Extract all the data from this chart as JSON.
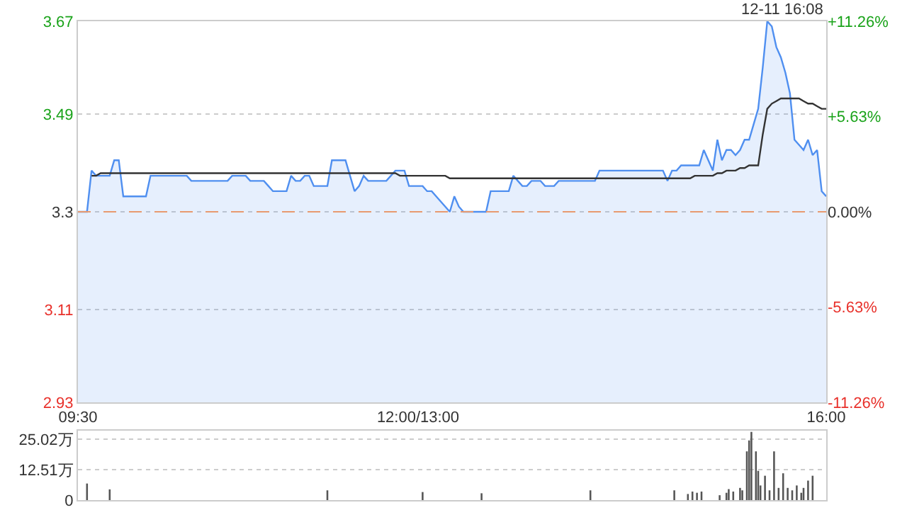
{
  "chart_data": [
    {
      "type": "line",
      "annotations": [
        "12-11 16:08"
      ],
      "categories": [
        "09:30",
        null,
        null,
        null,
        null,
        null,
        null,
        null,
        null,
        null,
        null,
        null,
        null,
        null,
        null,
        null,
        null,
        null,
        null,
        null,
        null,
        null,
        null,
        null,
        null,
        null,
        null,
        null,
        null,
        null,
        null,
        null,
        null,
        null,
        null,
        null,
        null,
        null,
        null,
        null,
        null,
        null,
        null,
        null,
        null,
        null,
        null,
        null,
        null,
        null,
        null,
        null,
        null,
        null,
        null,
        null,
        null,
        null,
        null,
        null,
        null,
        null,
        null,
        null,
        null,
        null,
        null,
        null,
        null,
        null,
        null,
        null,
        null,
        null,
        null,
        "12:00/13:00",
        null,
        null,
        null,
        null,
        null,
        null,
        null,
        null,
        null,
        null,
        null,
        null,
        null,
        null,
        null,
        null,
        null,
        null,
        null,
        null,
        null,
        null,
        null,
        null,
        null,
        null,
        null,
        null,
        null,
        null,
        null,
        null,
        null,
        null,
        null,
        null,
        null,
        null,
        null,
        null,
        null,
        null,
        null,
        null,
        null,
        null,
        null,
        null,
        null,
        null,
        null,
        null,
        null,
        null,
        null,
        null,
        null,
        null,
        null,
        null,
        null,
        null,
        null,
        null,
        null,
        null,
        null,
        null,
        null,
        null,
        null,
        null,
        null,
        null,
        null,
        null,
        null,
        null,
        null,
        null,
        null,
        null,
        null,
        null,
        null,
        null,
        null,
        null,
        null,
        "16:00"
      ],
      "ylim": [
        2.93,
        3.67
      ],
      "yticks": [
        2.93,
        3.11,
        3.3,
        3.49,
        3.67
      ],
      "y2lim": [
        -11.26,
        11.26
      ],
      "y2ticks": [
        {
          "value": -11.26,
          "label": "-11.26%"
        },
        {
          "value": -5.63,
          "label": "-5.63%"
        },
        {
          "value": 0,
          "label": "0.00%"
        },
        {
          "value": 5.63,
          "label": "+5.63%"
        },
        {
          "value": 11.26,
          "label": "+11.26%"
        }
      ],
      "grid": "y",
      "legend": false,
      "marker": "none",
      "ref_lines": [
        {
          "axis": "y",
          "value": 3.3,
          "color": "#e89a70",
          "line_style": "dashed"
        }
      ],
      "series": [
        {
          "type": "area",
          "color": "#4f8ff0",
          "values": [
            3.3,
            3.3,
            3.3,
            3.38,
            3.37,
            3.37,
            3.37,
            3.37,
            3.4,
            3.4,
            3.33,
            3.33,
            3.33,
            3.33,
            3.33,
            3.33,
            3.37,
            3.37,
            3.37,
            3.37,
            3.37,
            3.37,
            3.37,
            3.37,
            3.37,
            3.36,
            3.36,
            3.36,
            3.36,
            3.36,
            3.36,
            3.36,
            3.36,
            3.36,
            3.37,
            3.37,
            3.37,
            3.37,
            3.36,
            3.36,
            3.36,
            3.36,
            3.35,
            3.34,
            3.34,
            3.34,
            3.34,
            3.37,
            3.36,
            3.36,
            3.37,
            3.37,
            3.35,
            3.35,
            3.35,
            3.35,
            3.4,
            3.4,
            3.4,
            3.4,
            3.37,
            3.34,
            3.35,
            3.37,
            3.36,
            3.36,
            3.36,
            3.36,
            3.36,
            3.37,
            3.38,
            3.38,
            3.38,
            3.35,
            3.35,
            3.35,
            3.35,
            3.34,
            3.34,
            3.33,
            3.32,
            3.31,
            3.3,
            3.33,
            3.31,
            3.3,
            3.3,
            3.3,
            3.3,
            3.3,
            3.3,
            3.34,
            3.34,
            3.34,
            3.34,
            3.34,
            3.37,
            3.36,
            3.35,
            3.35,
            3.36,
            3.36,
            3.36,
            3.35,
            3.35,
            3.35,
            3.36,
            3.36,
            3.36,
            3.36,
            3.36,
            3.36,
            3.36,
            3.36,
            3.36,
            3.38,
            3.38,
            3.38,
            3.38,
            3.38,
            3.38,
            3.38,
            3.38,
            3.38,
            3.38,
            3.38,
            3.38,
            3.38,
            3.38,
            3.38,
            3.36,
            3.38,
            3.38,
            3.39,
            3.39,
            3.39,
            3.39,
            3.39,
            3.42,
            3.4,
            3.38,
            3.44,
            3.4,
            3.42,
            3.42,
            3.41,
            3.42,
            3.44,
            3.44,
            3.47,
            3.5,
            3.58,
            3.67,
            3.66,
            3.62,
            3.6,
            3.57,
            3.53,
            3.44,
            3.43,
            3.42,
            3.44,
            3.41,
            3.42,
            3.34,
            3.33
          ]
        },
        {
          "type": "line",
          "color": "#333333",
          "values": [
            null,
            null,
            null,
            3.37,
            3.37,
            3.375,
            3.375,
            3.375,
            3.375,
            3.375,
            3.375,
            3.375,
            3.375,
            3.375,
            3.375,
            3.375,
            3.375,
            3.375,
            3.375,
            3.375,
            3.375,
            3.375,
            3.375,
            3.375,
            3.375,
            3.375,
            3.375,
            3.375,
            3.375,
            3.375,
            3.375,
            3.375,
            3.375,
            3.375,
            3.375,
            3.375,
            3.375,
            3.375,
            3.375,
            3.375,
            3.375,
            3.375,
            3.375,
            3.375,
            3.375,
            3.375,
            3.375,
            3.375,
            3.375,
            3.375,
            3.375,
            3.375,
            3.375,
            3.375,
            3.375,
            3.375,
            3.375,
            3.375,
            3.375,
            3.375,
            3.375,
            3.375,
            3.375,
            3.375,
            3.375,
            3.375,
            3.375,
            3.375,
            3.375,
            3.375,
            3.375,
            3.37,
            3.37,
            3.37,
            3.37,
            3.37,
            3.37,
            3.37,
            3.37,
            3.37,
            3.37,
            3.37,
            3.365,
            3.365,
            3.365,
            3.365,
            3.365,
            3.365,
            3.365,
            3.365,
            3.365,
            3.365,
            3.365,
            3.365,
            3.365,
            3.365,
            3.365,
            3.365,
            3.365,
            3.365,
            3.365,
            3.365,
            3.365,
            3.365,
            3.365,
            3.365,
            3.365,
            3.365,
            3.365,
            3.365,
            3.365,
            3.365,
            3.365,
            3.365,
            3.365,
            3.365,
            3.365,
            3.365,
            3.365,
            3.365,
            3.365,
            3.365,
            3.365,
            3.365,
            3.365,
            3.365,
            3.365,
            3.365,
            3.365,
            3.365,
            3.365,
            3.365,
            3.365,
            3.365,
            3.365,
            3.365,
            3.37,
            3.37,
            3.37,
            3.37,
            3.37,
            3.375,
            3.375,
            3.38,
            3.38,
            3.38,
            3.385,
            3.385,
            3.39,
            3.39,
            3.39,
            3.45,
            3.5,
            3.51,
            3.515,
            3.52,
            3.52,
            3.52,
            3.52,
            3.52,
            3.515,
            3.51,
            3.51,
            3.505,
            3.5,
            3.5
          ]
        }
      ]
    },
    {
      "type": "bar",
      "tick_labels": "y",
      "grid": "y",
      "legend": false,
      "color": "#555555",
      "categories": [
        null,
        null,
        null,
        null,
        null,
        null,
        null,
        null,
        null,
        null,
        null,
        null,
        null,
        null,
        null,
        null,
        null,
        null,
        null,
        null,
        null,
        null,
        null,
        null,
        null,
        null,
        null,
        null,
        null,
        null,
        null,
        null,
        null,
        null,
        null,
        null,
        null,
        null,
        null,
        null,
        null,
        null,
        null,
        null,
        null,
        null,
        null,
        null,
        null,
        null,
        null,
        null,
        null,
        null,
        null,
        null,
        null,
        null,
        null,
        null,
        null,
        null,
        null,
        null,
        null,
        null,
        null,
        null,
        null,
        null,
        null,
        null,
        null,
        null,
        null,
        null,
        null,
        null,
        null,
        null,
        null,
        null,
        null,
        null,
        null,
        null,
        null,
        null,
        null,
        null,
        null,
        null,
        null,
        null,
        null,
        null,
        null,
        null,
        null,
        null,
        null,
        null,
        null,
        null,
        null,
        null,
        null,
        null,
        null,
        null,
        null,
        null,
        null,
        null,
        null,
        null,
        null,
        null,
        null,
        null,
        null,
        null,
        null,
        null,
        null,
        null,
        null,
        null,
        null,
        null,
        null,
        null,
        null,
        null,
        null,
        null,
        null,
        null,
        null,
        null,
        null,
        null,
        null,
        null,
        null,
        null,
        null,
        null,
        null,
        null,
        null,
        null,
        null,
        null,
        null,
        null,
        null,
        null,
        null,
        null,
        null,
        null,
        null,
        null,
        null,
        null,
        null,
        null,
        null,
        null,
        null,
        null,
        null,
        null,
        null,
        null,
        null,
        null,
        null,
        null,
        null,
        null,
        null,
        null,
        null,
        null,
        null,
        null,
        null,
        null,
        null,
        null,
        null,
        null,
        null,
        null,
        null,
        null,
        null,
        null,
        null,
        null,
        null,
        null,
        null,
        null,
        null,
        null,
        null,
        null,
        null,
        null,
        null,
        null,
        null,
        null,
        null,
        null,
        null,
        null,
        null,
        null,
        null,
        null,
        null,
        null,
        null,
        null,
        null,
        null,
        null,
        null,
        null,
        null,
        null,
        null,
        null,
        null,
        null,
        null,
        null,
        null,
        null,
        null,
        null,
        null,
        null,
        null,
        null,
        null,
        null,
        null,
        null,
        null,
        null,
        null,
        null,
        null,
        null,
        null,
        null,
        null,
        null,
        null,
        null,
        null,
        null,
        null,
        null,
        null,
        null,
        null,
        null,
        null,
        null,
        null,
        null,
        null,
        null,
        null,
        null,
        null,
        null,
        null,
        null,
        null,
        null,
        null,
        null,
        null,
        null,
        null,
        null,
        null,
        null,
        null,
        null,
        null,
        null,
        null,
        null,
        null,
        null,
        null,
        null,
        null,
        null,
        null,
        null,
        null,
        null,
        null,
        null,
        null,
        null,
        null,
        null,
        null,
        null,
        null,
        null,
        null,
        null,
        null,
        null,
        null,
        null,
        null,
        null,
        null,
        null
      ],
      "ylim": [
        0,
        28.5
      ],
      "yticks": [
        0,
        {
          "value": 12.51,
          "label": "12.51万"
        },
        {
          "value": 25.02,
          "label": "25.02万"
        }
      ],
      "values": [
        null,
        null,
        null,
        null,
        6.8,
        null,
        null,
        null,
        null,
        null,
        null,
        null,
        null,
        null,
        4.4,
        null,
        null,
        null,
        null,
        null,
        null,
        null,
        null,
        null,
        null,
        null,
        null,
        null,
        null,
        null,
        null,
        null,
        null,
        null,
        null,
        null,
        null,
        null,
        null,
        null,
        null,
        null,
        null,
        null,
        null,
        null,
        null,
        null,
        null,
        null,
        null,
        null,
        null,
        null,
        null,
        null,
        null,
        null,
        null,
        null,
        null,
        null,
        null,
        null,
        null,
        null,
        null,
        null,
        null,
        null,
        null,
        null,
        null,
        null,
        null,
        null,
        null,
        null,
        null,
        null,
        null,
        null,
        null,
        null,
        null,
        null,
        null,
        null,
        null,
        null,
        null,
        null,
        null,
        null,
        null,
        null,
        null,
        null,
        null,
        null,
        null,
        null,
        null,
        null,
        null,
        null,
        null,
        null,
        null,
        null,
        4,
        null,
        null,
        null,
        null,
        null,
        null,
        null,
        null,
        null,
        null,
        null,
        null,
        null,
        null,
        null,
        null,
        null,
        null,
        null,
        null,
        null,
        null,
        null,
        null,
        null,
        null,
        null,
        null,
        null,
        null,
        null,
        null,
        null,
        null,
        null,
        null,
        null,
        null,
        null,
        null,
        null,
        3.3,
        null,
        null,
        null,
        null,
        null,
        null,
        null,
        null,
        null,
        null,
        null,
        null,
        null,
        null,
        null,
        null,
        null,
        null,
        null,
        null,
        null,
        null,
        null,
        null,
        null,
        2.8,
        null,
        null,
        null,
        null,
        null,
        null,
        null,
        null,
        null,
        null,
        null,
        null,
        null,
        null,
        null,
        null,
        null,
        null,
        null,
        null,
        null,
        null,
        null,
        null,
        null,
        null,
        null,
        null,
        null,
        null,
        null,
        null,
        null,
        null,
        null,
        null,
        null,
        null,
        null,
        null,
        null,
        null,
        null,
        null,
        null,
        null,
        null,
        4,
        null,
        null,
        null,
        null,
        null,
        null,
        null,
        null,
        null,
        null,
        null,
        null,
        null,
        null,
        null,
        null,
        null,
        null,
        null,
        null,
        null,
        null,
        null,
        null,
        null,
        null,
        null,
        null,
        null,
        null,
        null,
        null,
        null,
        null,
        null,
        null,
        4,
        null,
        null,
        null,
        null,
        null,
        2.5,
        null,
        3.5,
        null,
        3,
        null,
        3.5,
        null,
        null,
        null,
        null,
        null,
        null,
        null,
        2,
        null,
        null,
        3,
        4.5,
        null,
        3.5,
        null,
        null,
        5,
        4,
        null,
        20,
        24.5,
        28,
        null,
        20,
        12,
        6,
        null,
        10,
        null,
        4,
        null,
        20,
        null,
        5,
        null,
        11,
        null,
        5,
        null,
        4,
        null,
        6,
        null,
        3,
        5,
        null,
        8,
        null,
        10,
        null,
        null,
        null,
        null,
        null,
        null
      ]
    }
  ]
}
